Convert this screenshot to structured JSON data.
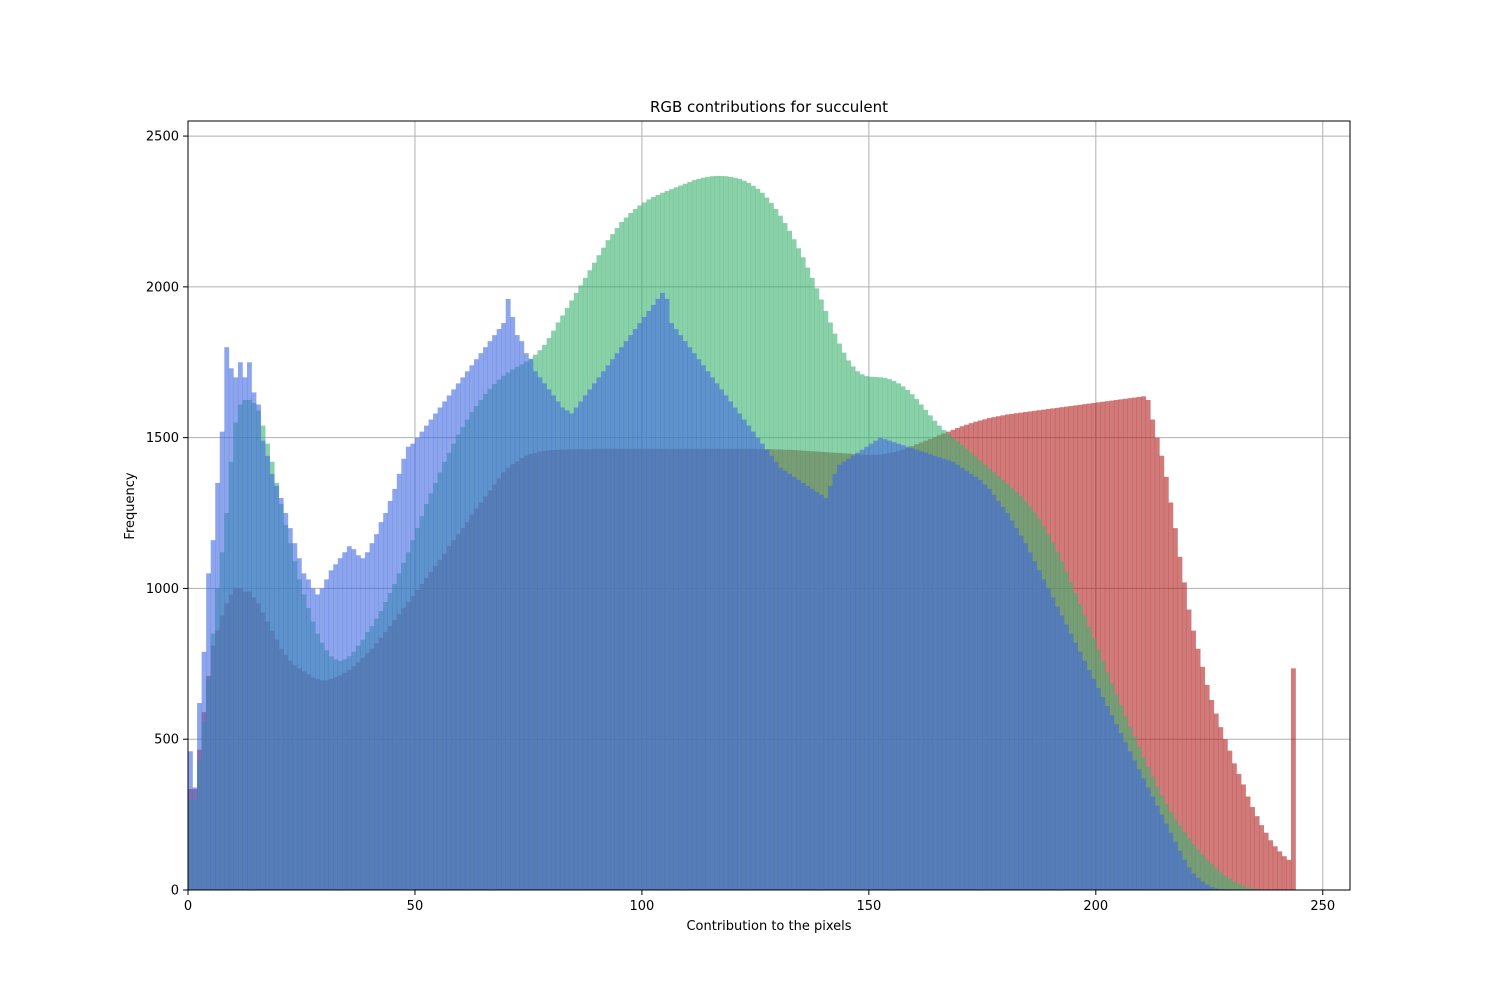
{
  "chart_data": {
    "type": "bar",
    "title": "RGB contributions for succulent",
    "xlabel": "Contribution to the pixels",
    "ylabel": "Frequency",
    "xlim": [
      0,
      256
    ],
    "ylim": [
      0,
      2550
    ],
    "xticks": [
      0,
      50,
      100,
      150,
      200,
      250
    ],
    "yticks": [
      0,
      500,
      1000,
      1500,
      2000,
      2500
    ],
    "grid": true,
    "bin_width": 1,
    "bar_opacity": 0.6,
    "series": [
      {
        "color": "#b22222",
        "values": [
          335,
          335,
          465,
          590,
          710,
          810,
          860,
          910,
          950,
          980,
          1000,
          1000,
          990,
          990,
          970,
          950,
          920,
          890,
          860,
          830,
          800,
          780,
          760,
          745,
          735,
          725,
          715,
          705,
          700,
          695,
          695,
          700,
          705,
          712,
          720,
          730,
          742,
          755,
          770,
          785,
          800,
          818,
          836,
          855,
          875,
          895,
          915,
          935,
          955,
          975,
          995,
          1015,
          1035,
          1055,
          1075,
          1095,
          1115,
          1140,
          1160,
          1180,
          1200,
          1220,
          1245,
          1265,
          1285,
          1305,
          1325,
          1345,
          1365,
          1385,
          1400,
          1412,
          1422,
          1432,
          1440,
          1446,
          1450,
          1454,
          1456,
          1458,
          1459,
          1460,
          1460,
          1461,
          1461,
          1462,
          1462,
          1462,
          1462,
          1463,
          1463,
          1463,
          1463,
          1463,
          1463,
          1463,
          1463,
          1463,
          1463,
          1463,
          1463,
          1463,
          1463,
          1463,
          1463,
          1463,
          1463,
          1463,
          1463,
          1463,
          1463,
          1463,
          1463,
          1463,
          1463,
          1463,
          1463,
          1463,
          1463,
          1463,
          1463,
          1463,
          1463,
          1463,
          1463,
          1462,
          1462,
          1462,
          1462,
          1461,
          1461,
          1460,
          1460,
          1459,
          1458,
          1457,
          1456,
          1455,
          1454,
          1453,
          1452,
          1451,
          1450,
          1449,
          1448,
          1447,
          1446,
          1445,
          1444,
          1443,
          1443,
          1443,
          1444,
          1446,
          1449,
          1452,
          1456,
          1461,
          1466,
          1472,
          1478,
          1484,
          1490,
          1496,
          1502,
          1508,
          1514,
          1520,
          1526,
          1532,
          1538,
          1543,
          1548,
          1553,
          1557,
          1561,
          1565,
          1568,
          1571,
          1574,
          1577,
          1579,
          1581,
          1583,
          1585,
          1587,
          1589,
          1591,
          1593,
          1595,
          1597,
          1599,
          1601,
          1603,
          1605,
          1607,
          1609,
          1611,
          1613,
          1615,
          1617,
          1619,
          1621,
          1623,
          1625,
          1627,
          1629,
          1631,
          1633,
          1635,
          1637,
          1625,
          1560,
          1500,
          1440,
          1370,
          1285,
          1200,
          1105,
          1020,
          930,
          860,
          800,
          740,
          680,
          630,
          585,
          540,
          500,
          462,
          420,
          385,
          350,
          310,
          275,
          245,
          215,
          190,
          165,
          145,
          128,
          112,
          100,
          735
        ]
      },
      {
        "color": "#3cb371",
        "values": [
          300,
          300,
          430,
          560,
          700,
          850,
          1000,
          1120,
          1250,
          1420,
          1550,
          1610,
          1625,
          1625,
          1615,
          1590,
          1540,
          1480,
          1420,
          1350,
          1280,
          1210,
          1150,
          1090,
          1030,
          980,
          935,
          890,
          850,
          820,
          795,
          775,
          765,
          760,
          765,
          775,
          790,
          810,
          830,
          855,
          875,
          900,
          925,
          955,
          985,
          1015,
          1050,
          1085,
          1120,
          1160,
          1200,
          1240,
          1280,
          1315,
          1350,
          1385,
          1420,
          1450,
          1480,
          1510,
          1535,
          1560,
          1585,
          1605,
          1625,
          1645,
          1662,
          1678,
          1692,
          1705,
          1716,
          1726,
          1735,
          1743,
          1752,
          1762,
          1775,
          1790,
          1808,
          1830,
          1855,
          1882,
          1905,
          1930,
          1955,
          1980,
          2005,
          2030,
          2055,
          2080,
          2105,
          2130,
          2155,
          2175,
          2195,
          2215,
          2230,
          2245,
          2258,
          2270,
          2280,
          2290,
          2298,
          2305,
          2312,
          2318,
          2324,
          2330,
          2336,
          2342,
          2348,
          2354,
          2358,
          2362,
          2365,
          2367,
          2368,
          2368,
          2367,
          2365,
          2362,
          2358,
          2352,
          2345,
          2335,
          2325,
          2312,
          2296,
          2278,
          2258,
          2236,
          2212,
          2186,
          2158,
          2128,
          2098,
          2064,
          2030,
          1995,
          1958,
          1920,
          1882,
          1845,
          1812,
          1782,
          1756,
          1736,
          1720,
          1710,
          1704,
          1702,
          1701,
          1700,
          1698,
          1694,
          1688,
          1680,
          1670,
          1658,
          1644,
          1628,
          1610,
          1592,
          1574,
          1556,
          1540,
          1525,
          1512,
          1500,
          1488,
          1476,
          1463,
          1450,
          1437,
          1424,
          1411,
          1398,
          1385,
          1372,
          1359,
          1346,
          1333,
          1320,
          1306,
          1290,
          1272,
          1252,
          1230,
          1206,
          1180,
          1152,
          1122,
          1090,
          1056,
          1020,
          985,
          948,
          910,
          872,
          835,
          798,
          760,
          722,
          686,
          650,
          614,
          578,
          542,
          508,
          474,
          440,
          408,
          376,
          344,
          314,
          286,
          260,
          236,
          214,
          192,
          172,
          152,
          134,
          117,
          101,
          86,
          72,
          59,
          47,
          37,
          28,
          20,
          14,
          9,
          5,
          3,
          2,
          1,
          1,
          0,
          0,
          0,
          0,
          0,
          0,
          0,
          0,
          0,
          0,
          0,
          0,
          0,
          0,
          0,
          0,
          0,
          0,
          0,
          0,
          0,
          0,
          0,
          0,
          0,
          0,
          0,
          0,
          0,
          0
        ]
      },
      {
        "color": "#4169e1",
        "values": [
          460,
          340,
          620,
          790,
          1050,
          1160,
          1350,
          1520,
          1800,
          1730,
          1700,
          1750,
          1700,
          1750,
          1650,
          1610,
          1490,
          1440,
          1380,
          1340,
          1300,
          1250,
          1200,
          1150,
          1100,
          1050,
          1030,
          1000,
          980,
          1000,
          1030,
          1060,
          1080,
          1100,
          1120,
          1140,
          1130,
          1110,
          1100,
          1120,
          1150,
          1180,
          1220,
          1250,
          1290,
          1330,
          1380,
          1430,
          1470,
          1480,
          1500,
          1520,
          1540,
          1560,
          1580,
          1600,
          1620,
          1640,
          1660,
          1680,
          1700,
          1720,
          1740,
          1760,
          1780,
          1800,
          1820,
          1840,
          1860,
          1880,
          1960,
          1900,
          1840,
          1820,
          1780,
          1760,
          1720,
          1700,
          1680,
          1660,
          1640,
          1620,
          1600,
          1590,
          1580,
          1600,
          1620,
          1640,
          1660,
          1680,
          1700,
          1720,
          1740,
          1760,
          1780,
          1800,
          1820,
          1840,
          1860,
          1880,
          1900,
          1920,
          1940,
          1960,
          1980,
          1960,
          1880,
          1860,
          1840,
          1820,
          1800,
          1780,
          1760,
          1740,
          1720,
          1700,
          1680,
          1660,
          1640,
          1620,
          1600,
          1580,
          1560,
          1540,
          1520,
          1500,
          1480,
          1460,
          1440,
          1420,
          1400,
          1390,
          1380,
          1370,
          1360,
          1350,
          1340,
          1330,
          1320,
          1310,
          1300,
          1340,
          1380,
          1410,
          1420,
          1430,
          1440,
          1450,
          1460,
          1470,
          1480,
          1490,
          1500,
          1495,
          1490,
          1485,
          1480,
          1475,
          1470,
          1465,
          1460,
          1455,
          1450,
          1445,
          1440,
          1435,
          1430,
          1425,
          1420,
          1410,
          1400,
          1390,
          1380,
          1370,
          1360,
          1345,
          1330,
          1310,
          1290,
          1270,
          1250,
          1225,
          1200,
          1175,
          1150,
          1120,
          1090,
          1060,
          1030,
          1000,
          970,
          940,
          910,
          880,
          850,
          820,
          790,
          760,
          730,
          700,
          670,
          640,
          610,
          580,
          550,
          520,
          490,
          460,
          430,
          400,
          370,
          340,
          310,
          280,
          250,
          220,
          190,
          160,
          130,
          100,
          75,
          55,
          40,
          28,
          18,
          10,
          5,
          3,
          2,
          1,
          1,
          0,
          0,
          0,
          0,
          0,
          0,
          0,
          0,
          0,
          0,
          0,
          0,
          0,
          0,
          0,
          0,
          0,
          0,
          0,
          0,
          0,
          0,
          0,
          0,
          0,
          0,
          0,
          0,
          0,
          0,
          0,
          0,
          0
        ]
      }
    ]
  }
}
